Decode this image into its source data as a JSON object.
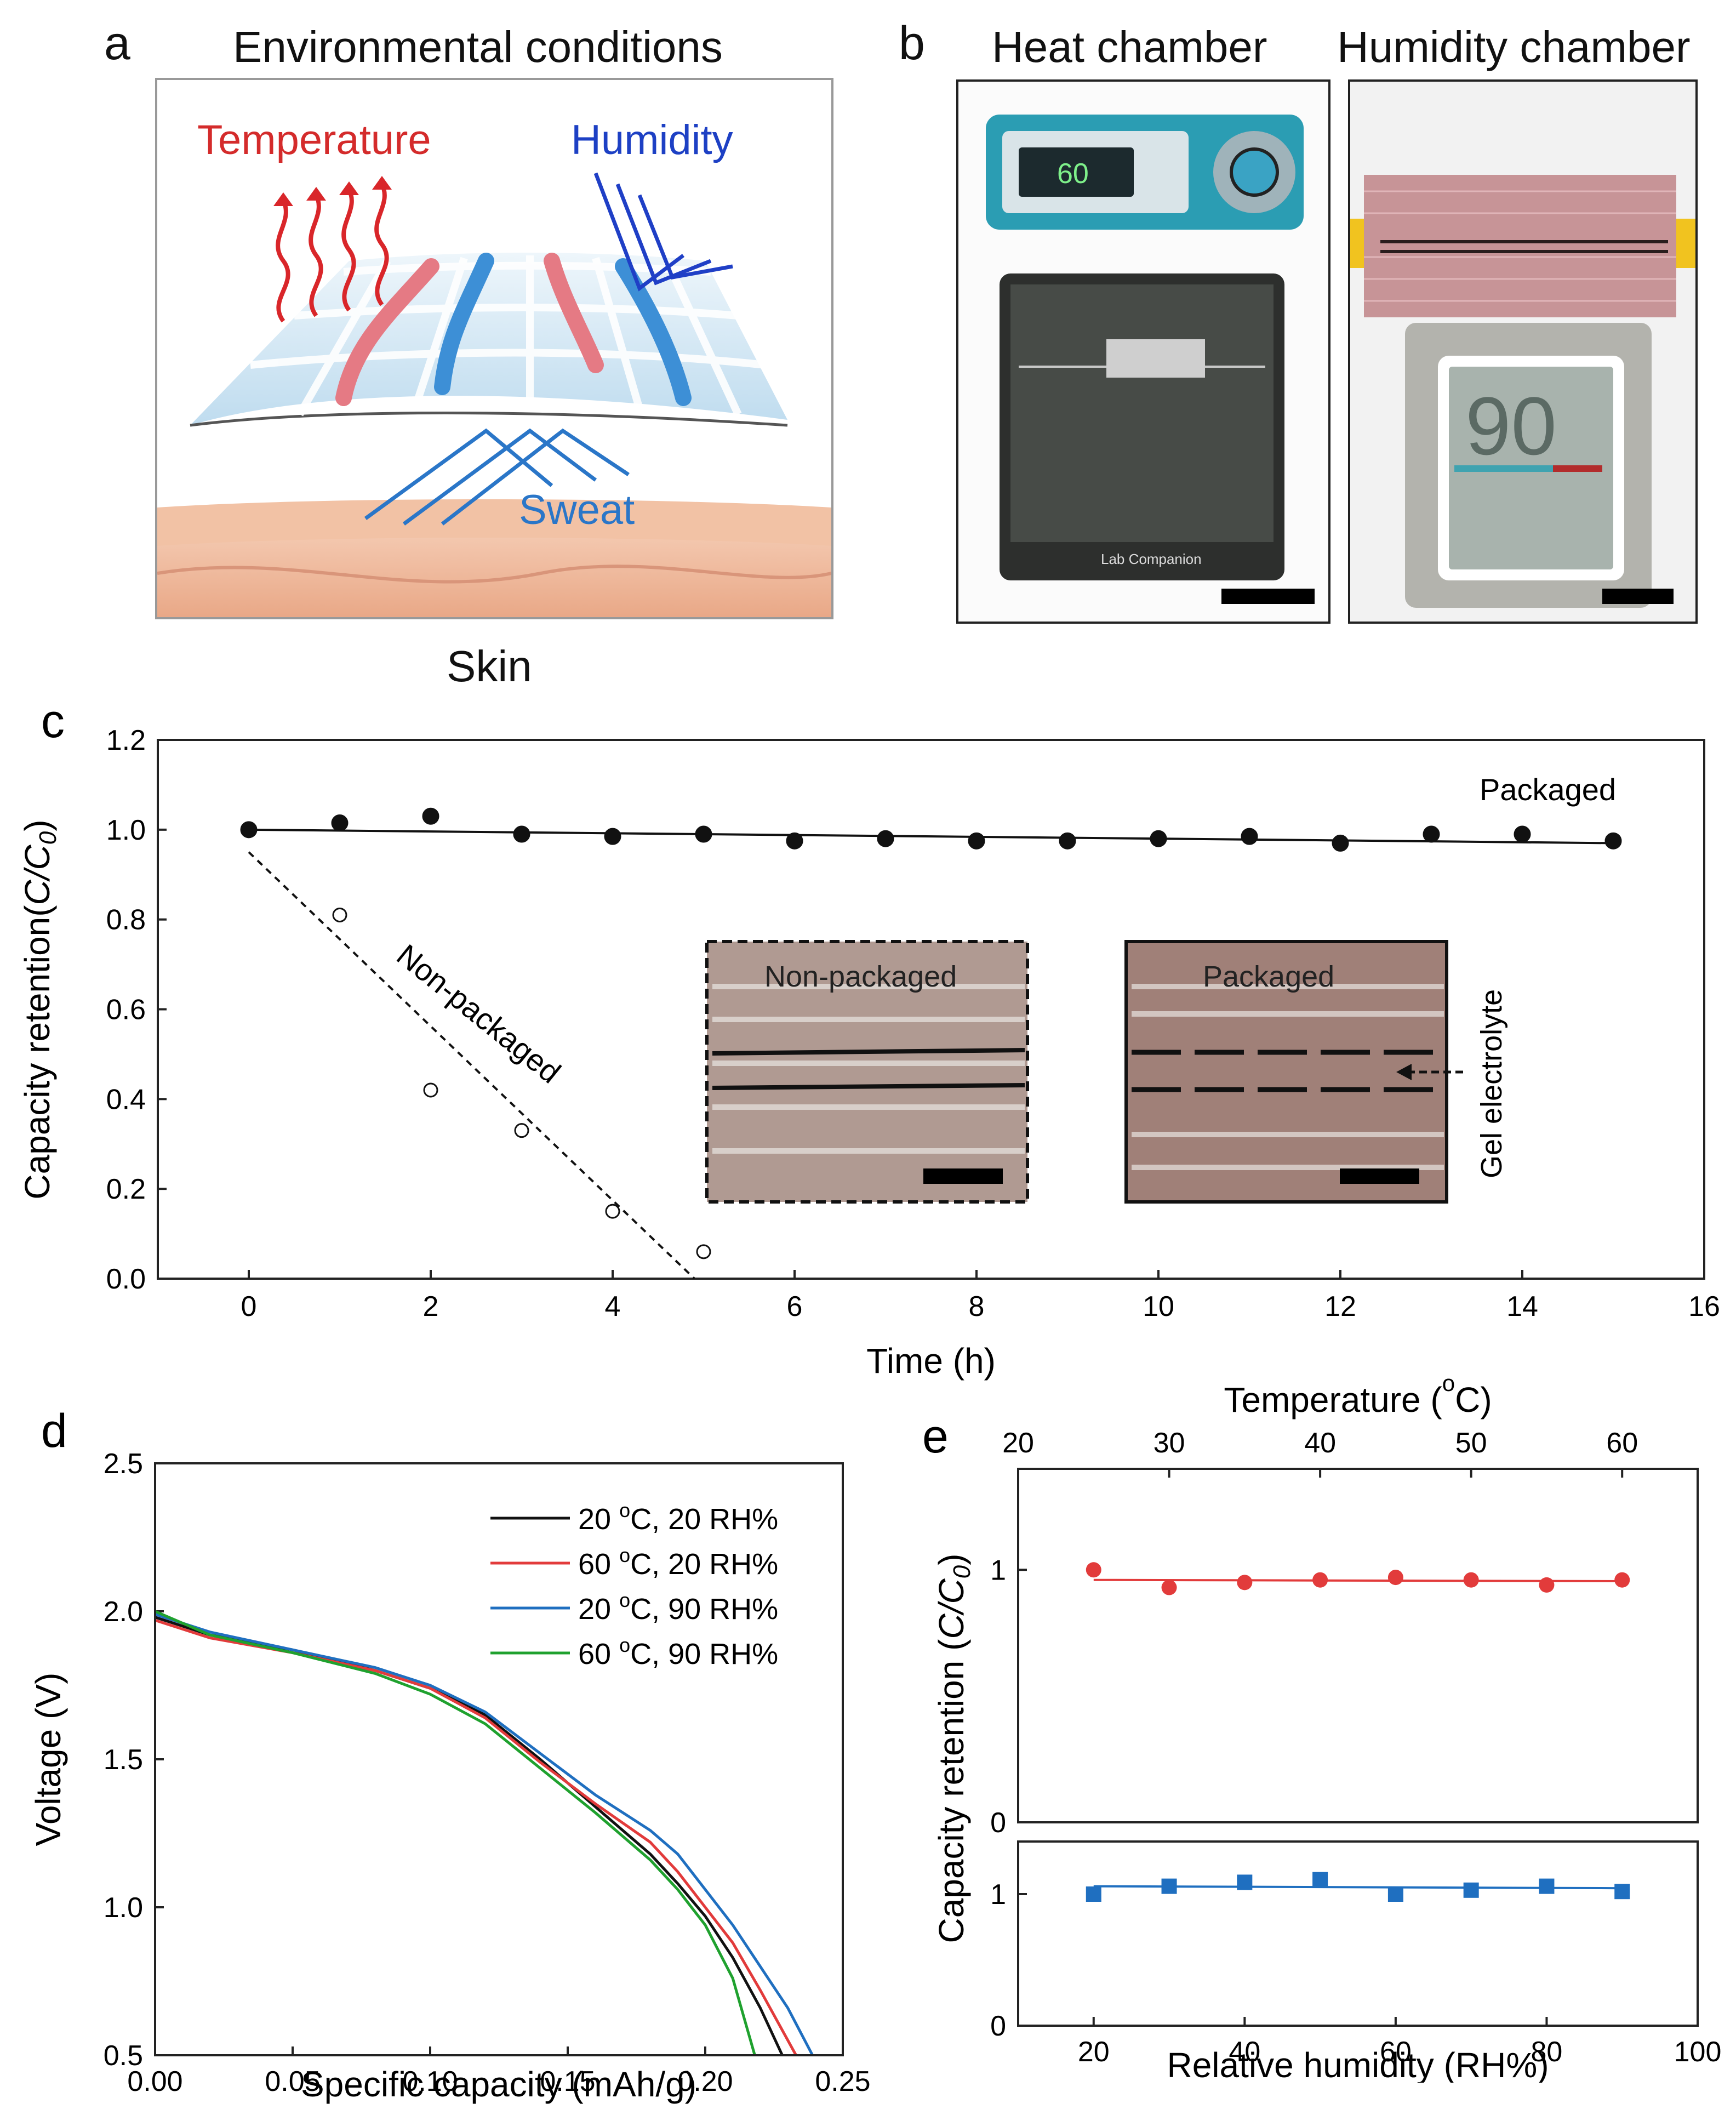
{
  "panel_a": {
    "letter": "a",
    "title": "Environmental conditions",
    "temperature": "Temperature",
    "humidity": "Humidity",
    "sweat": "Sweat",
    "skin": "Skin"
  },
  "panel_b": {
    "letter": "b",
    "heat_title": "Heat chamber",
    "humidity_title": "Humidity chamber",
    "heat_display": "60",
    "humidity_display": "90",
    "brand": "Lab Companion"
  },
  "colors": {
    "red": "#e23b3b",
    "blue": "#1f6fc0",
    "green": "#1fa12e",
    "black": "#111111"
  },
  "chart_data": [
    {
      "id": "c",
      "letter": "c",
      "type": "scatter",
      "xlabel": "Time (h)",
      "ylabel_pre": "Capacity retention(",
      "ylabel_it": "C/C",
      "ylabel_sub": "0",
      "ylabel_post": ")",
      "xlim": [
        -1,
        16
      ],
      "ylim": [
        0,
        1.2
      ],
      "xticks": [
        "0",
        "2",
        "4",
        "6",
        "8",
        "10",
        "12",
        "14",
        "16"
      ],
      "yticks": [
        "0.0",
        "0.2",
        "0.4",
        "0.6",
        "0.8",
        "1.0",
        "1.2"
      ],
      "series": [
        {
          "name": "Packaged",
          "marker": "filled",
          "x": [
            0,
            1,
            2,
            3,
            4,
            5,
            6,
            7,
            8,
            9,
            10,
            11,
            12,
            13,
            14,
            15
          ],
          "y": [
            1.0,
            1.015,
            1.03,
            0.99,
            0.985,
            0.99,
            0.975,
            0.98,
            0.975,
            0.975,
            0.98,
            0.985,
            0.97,
            0.99,
            0.99,
            0.975
          ],
          "fit": [
            [
              0,
              1.0
            ],
            [
              15,
              0.97
            ]
          ]
        },
        {
          "name": "Non-packaged",
          "marker": "open",
          "x": [
            1,
            2,
            3,
            4,
            5
          ],
          "y": [
            0.81,
            0.42,
            0.33,
            0.15,
            0.06
          ],
          "fit": [
            [
              0,
              0.95
            ],
            [
              4.9,
              0.0
            ]
          ]
        }
      ],
      "annotations": {
        "packaged": "Packaged",
        "non_packaged": "Non-packaged",
        "inset1": "Non-packaged",
        "inset2": "Packaged",
        "gel": "Gel electrolyte"
      }
    },
    {
      "id": "d",
      "letter": "d",
      "type": "line",
      "xlabel": "Specific capacity (mAh/g)",
      "ylabel": "Voltage (V)",
      "xlim": [
        0,
        0.25
      ],
      "ylim": [
        0.5,
        2.5
      ],
      "xticks": [
        "0.00",
        "0.05",
        "0.10",
        "0.15",
        "0.20",
        "0.25"
      ],
      "yticks": [
        "0.5",
        "1.0",
        "1.5",
        "2.0",
        "2.5"
      ],
      "legend_position": "top-right",
      "series": [
        {
          "name_pre": "20 ",
          "name_sup": "o",
          "name_post": "C, 20 RH%",
          "color": "#111111",
          "points": [
            [
              0,
              1.98
            ],
            [
              0.02,
              1.92
            ],
            [
              0.05,
              1.87
            ],
            [
              0.08,
              1.8
            ],
            [
              0.1,
              1.74
            ],
            [
              0.12,
              1.65
            ],
            [
              0.14,
              1.5
            ],
            [
              0.16,
              1.34
            ],
            [
              0.18,
              1.18
            ],
            [
              0.19,
              1.08
            ],
            [
              0.2,
              0.97
            ],
            [
              0.21,
              0.83
            ],
            [
              0.22,
              0.66
            ],
            [
              0.228,
              0.5
            ]
          ]
        },
        {
          "name_pre": "60 ",
          "name_sup": "o",
          "name_post": "C, 20 RH%",
          "color": "#e23b3b",
          "points": [
            [
              0,
              1.97
            ],
            [
              0.02,
              1.91
            ],
            [
              0.05,
              1.86
            ],
            [
              0.08,
              1.8
            ],
            [
              0.1,
              1.74
            ],
            [
              0.12,
              1.64
            ],
            [
              0.14,
              1.49
            ],
            [
              0.16,
              1.35
            ],
            [
              0.18,
              1.22
            ],
            [
              0.19,
              1.12
            ],
            [
              0.2,
              1.0
            ],
            [
              0.21,
              0.88
            ],
            [
              0.22,
              0.72
            ],
            [
              0.233,
              0.5
            ]
          ]
        },
        {
          "name_pre": "20 ",
          "name_sup": "o",
          "name_post": "C, 90 RH%",
          "color": "#1f6fc0",
          "points": [
            [
              0,
              1.99
            ],
            [
              0.02,
              1.93
            ],
            [
              0.05,
              1.87
            ],
            [
              0.08,
              1.81
            ],
            [
              0.1,
              1.75
            ],
            [
              0.12,
              1.66
            ],
            [
              0.14,
              1.52
            ],
            [
              0.16,
              1.38
            ],
            [
              0.18,
              1.26
            ],
            [
              0.19,
              1.18
            ],
            [
              0.2,
              1.06
            ],
            [
              0.21,
              0.94
            ],
            [
              0.22,
              0.8
            ],
            [
              0.23,
              0.66
            ],
            [
              0.239,
              0.5
            ]
          ]
        },
        {
          "name_pre": "60 ",
          "name_sup": "o",
          "name_post": "C, 90 RH%",
          "color": "#1fa12e",
          "points": [
            [
              0,
              2.0
            ],
            [
              0.02,
              1.92
            ],
            [
              0.05,
              1.86
            ],
            [
              0.08,
              1.79
            ],
            [
              0.1,
              1.72
            ],
            [
              0.12,
              1.62
            ],
            [
              0.14,
              1.47
            ],
            [
              0.16,
              1.32
            ],
            [
              0.18,
              1.16
            ],
            [
              0.19,
              1.06
            ],
            [
              0.2,
              0.94
            ],
            [
              0.21,
              0.76
            ],
            [
              0.218,
              0.5
            ]
          ]
        }
      ]
    },
    {
      "id": "e",
      "letter": "e",
      "type": "scatter",
      "ylabel_pre": "Capacity retention (",
      "ylabel_it": "C/C",
      "ylabel_sub": "0",
      "ylabel_post": ")",
      "top": {
        "xlabel_pre": "Temperature (",
        "xlabel_sup": "o",
        "xlabel_post": "C)",
        "xlim": [
          20,
          65
        ],
        "ylim": [
          0,
          1.4
        ],
        "xticks": [
          "20",
          "30",
          "40",
          "50",
          "60"
        ],
        "yticks": [
          "0",
          "1"
        ],
        "color": "#e23b3b",
        "x": [
          25,
          30,
          35,
          40,
          45,
          50,
          55,
          60
        ],
        "y": [
          1.0,
          0.93,
          0.95,
          0.96,
          0.97,
          0.96,
          0.94,
          0.96
        ],
        "fit": [
          [
            25,
            0.96
          ],
          [
            60,
            0.955
          ]
        ]
      },
      "bottom": {
        "xlabel": "Relative humidity (RH%)",
        "xlim": [
          10,
          100
        ],
        "ylim": [
          0,
          1.4
        ],
        "xticks": [
          "20",
          "40",
          "60",
          "80",
          "100"
        ],
        "yticks": [
          "0",
          "1"
        ],
        "color": "#1f6fc0",
        "x": [
          20,
          30,
          40,
          50,
          60,
          70,
          80,
          90
        ],
        "y": [
          1.0,
          1.06,
          1.09,
          1.11,
          1.0,
          1.03,
          1.06,
          1.02
        ],
        "fit": [
          [
            20,
            1.06
          ],
          [
            90,
            1.045
          ]
        ]
      }
    }
  ]
}
